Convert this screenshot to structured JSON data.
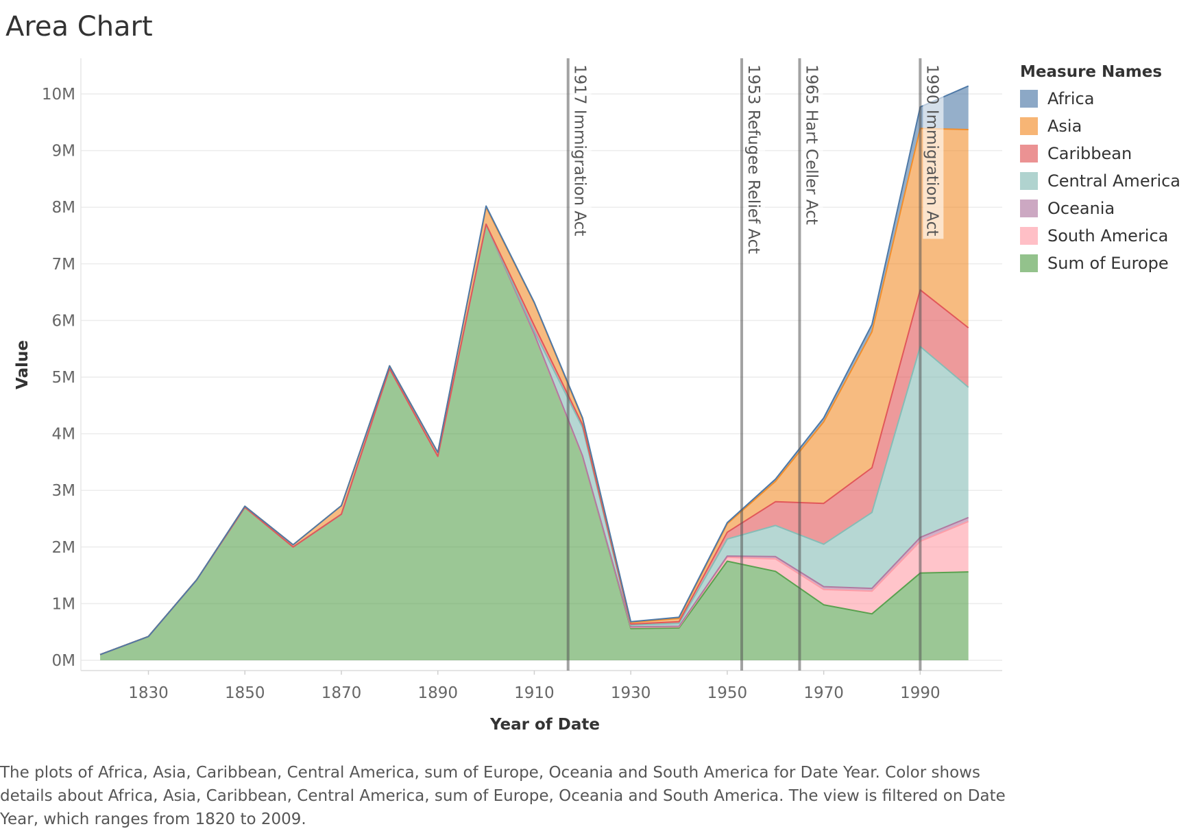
{
  "title": "Area Chart",
  "caption": "The plots of Africa, Asia, Caribbean, Central America, sum of Europe, Oceania and South America for Date Year.  Color shows details about Africa, Asia, Caribbean, Central America, sum of Europe, Oceania and South America. The view is filtered on Date Year, which ranges from 1820 to 2009.",
  "chart_data": {
    "type": "area",
    "stacked": true,
    "title": "Area Chart",
    "xlabel": "Year of Date",
    "ylabel": "Value",
    "x": [
      1820,
      1830,
      1840,
      1850,
      1860,
      1870,
      1880,
      1890,
      1900,
      1910,
      1920,
      1930,
      1940,
      1950,
      1960,
      1970,
      1980,
      1990,
      2000
    ],
    "x_ticks": [
      1830,
      1850,
      1870,
      1890,
      1910,
      1930,
      1950,
      1970,
      1990
    ],
    "y_ticks": [
      0,
      1,
      2,
      3,
      4,
      5,
      6,
      7,
      8,
      9,
      10
    ],
    "y_tick_labels": [
      "0M",
      "1M",
      "2M",
      "3M",
      "4M",
      "5M",
      "6M",
      "7M",
      "8M",
      "9M",
      "10M"
    ],
    "xlim": [
      1810,
      2009
    ],
    "ylim": [
      0,
      10.5
    ],
    "y_units": "millions",
    "series": [
      {
        "name": "Sum of Europe",
        "color": "#59a14f",
        "values": [
          0.1,
          0.42,
          1.42,
          2.7,
          2.0,
          2.58,
          5.15,
          3.6,
          7.7,
          5.75,
          3.6,
          0.56,
          0.57,
          1.75,
          1.57,
          0.98,
          0.82,
          1.54,
          1.56
        ]
      },
      {
        "name": "South America",
        "color": "#ff9da7",
        "values": [
          0.0,
          0.0,
          0.0,
          0.0,
          0.0,
          0.0,
          0.0,
          0.0,
          0.0,
          0.0,
          0.0,
          0.02,
          0.02,
          0.07,
          0.22,
          0.27,
          0.4,
          0.56,
          0.89
        ]
      },
      {
        "name": "Oceania",
        "color": "#b07aa1",
        "values": [
          0.0,
          0.0,
          0.0,
          0.0,
          0.0,
          0.0,
          0.0,
          0.0,
          0.0,
          0.01,
          0.01,
          0.01,
          0.01,
          0.02,
          0.04,
          0.05,
          0.05,
          0.07,
          0.07
        ]
      },
      {
        "name": "Central America",
        "color": "#86bcb6",
        "values": [
          0.0,
          0.0,
          0.0,
          0.0,
          0.0,
          0.0,
          0.0,
          0.0,
          0.0,
          0.05,
          0.5,
          0.03,
          0.05,
          0.3,
          0.55,
          0.75,
          1.34,
          3.37,
          2.3
        ]
      },
      {
        "name": "Caribbean",
        "color": "#e15759",
        "values": [
          0.0,
          0.0,
          0.0,
          0.0,
          0.0,
          0.0,
          0.0,
          0.0,
          0.0,
          0.1,
          0.05,
          0.02,
          0.03,
          0.12,
          0.42,
          0.72,
          0.79,
          1.0,
          1.05
        ]
      },
      {
        "name": "Asia",
        "color": "#f28e2b",
        "values": [
          0.0,
          0.0,
          0.0,
          0.02,
          0.04,
          0.15,
          0.05,
          0.07,
          0.3,
          0.4,
          0.1,
          0.03,
          0.06,
          0.15,
          0.36,
          1.44,
          2.4,
          2.85,
          3.5
        ]
      },
      {
        "name": "Africa",
        "color": "#4e79a7",
        "values": [
          0.0,
          0.0,
          0.0,
          0.0,
          0.0,
          0.0,
          0.0,
          0.0,
          0.02,
          0.01,
          0.02,
          0.01,
          0.02,
          0.02,
          0.04,
          0.07,
          0.13,
          0.38,
          0.77
        ]
      }
    ],
    "annotations": [
      {
        "year": 1917,
        "label": "1917 Immigration Act"
      },
      {
        "year": 1953,
        "label": "1953 Refugee Relief Act"
      },
      {
        "year": 1965,
        "label": "1965 Hart Celler Act"
      },
      {
        "year": 1990,
        "label": "1990 Immigration Act"
      }
    ],
    "legend": {
      "title": "Measure Names",
      "placement": "right",
      "items": [
        {
          "name": "Africa",
          "color": "#4e79a7"
        },
        {
          "name": "Asia",
          "color": "#f28e2b"
        },
        {
          "name": "Caribbean",
          "color": "#e15759"
        },
        {
          "name": "Central America",
          "color": "#86bcb6"
        },
        {
          "name": "Oceania",
          "color": "#b07aa1"
        },
        {
          "name": "South America",
          "color": "#ff9da7"
        },
        {
          "name": "Sum of Europe",
          "color": "#59a14f"
        }
      ]
    }
  }
}
